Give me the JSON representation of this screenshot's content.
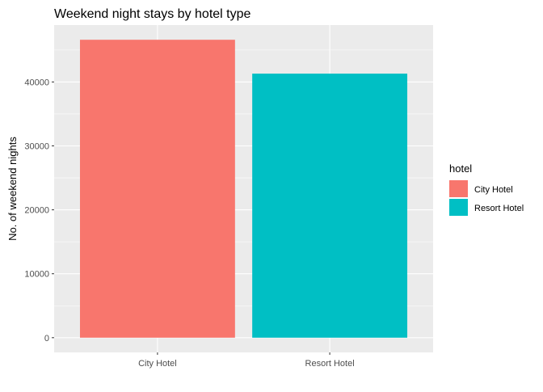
{
  "chart_data": {
    "type": "bar",
    "title": "Weekend night stays by hotel type",
    "xlabel": "",
    "ylabel": "No. of weekend nights",
    "categories": [
      "City Hotel",
      "Resort Hotel"
    ],
    "values": [
      46600,
      41300
    ],
    "colors": [
      "#F8766D",
      "#00BFC4"
    ],
    "ylim": [
      -2300,
      48900
    ],
    "yticks": [
      0,
      10000,
      20000,
      30000,
      40000
    ],
    "ytick_labels": [
      "0",
      "10000",
      "20000",
      "30000",
      "40000"
    ],
    "grid": true,
    "panel_background": "#EBEBEB",
    "gridline_color": "#FFFFFF",
    "legend": {
      "title": "hotel",
      "placement": "right",
      "entries": [
        "City Hotel",
        "Resort Hotel"
      ]
    }
  }
}
